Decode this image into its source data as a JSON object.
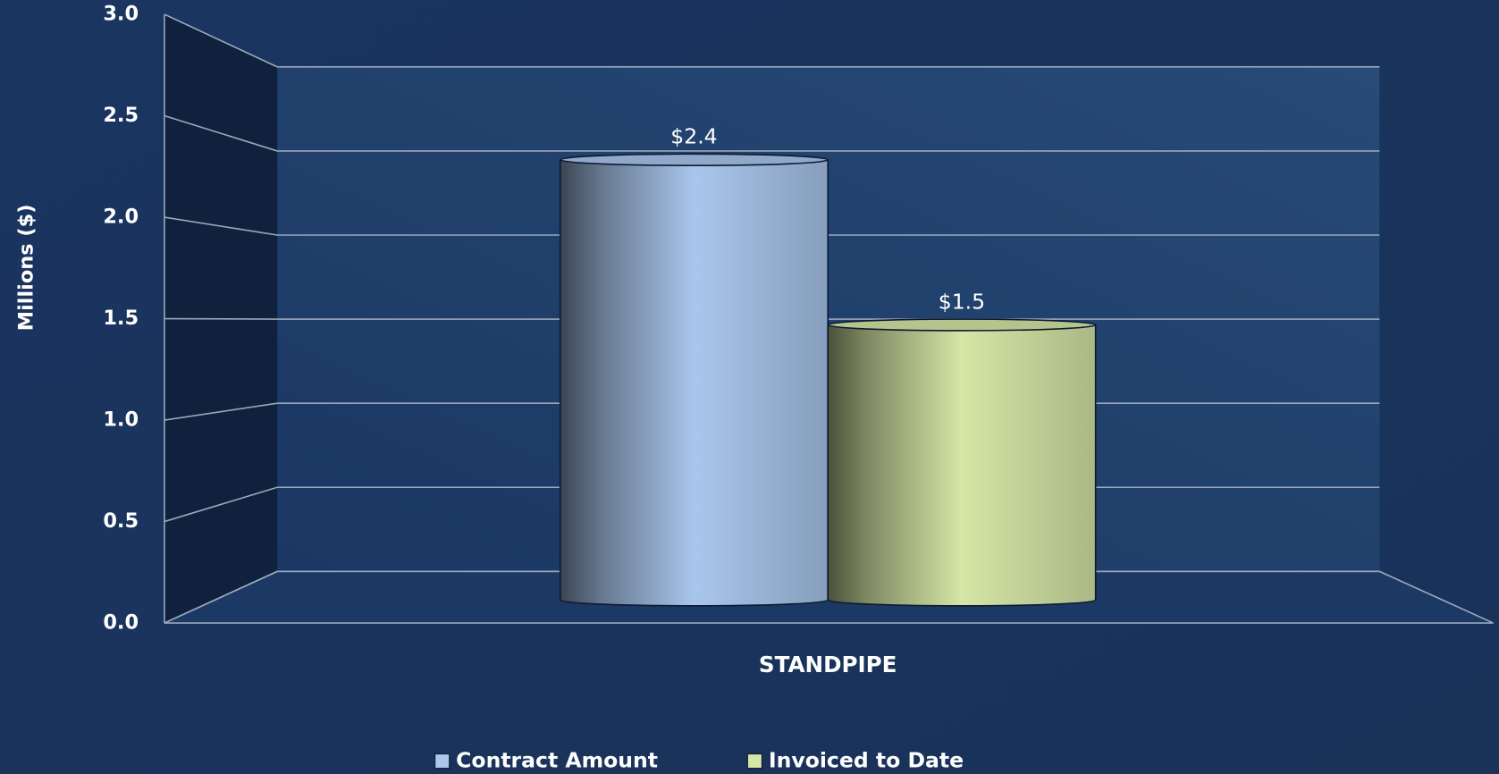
{
  "chart_data": {
    "type": "bar",
    "y_label": "Millions ($)",
    "categories": [
      "STANDPIPE"
    ],
    "series": [
      {
        "name": "Contract Amount",
        "color": "#a9c6ec",
        "values": [
          2.4
        ],
        "value_labels": [
          "$2.4"
        ]
      },
      {
        "name": "Invoiced to Date",
        "color": "#d5e6a6",
        "values": [
          1.5
        ],
        "value_labels": [
          "$1.5"
        ]
      }
    ],
    "ylim": [
      0,
      3
    ],
    "yticks": [
      {
        "value": 0,
        "label": "0.0"
      },
      0.5,
      {
        "value": 1,
        "label": "1.0"
      },
      1.5,
      {
        "value": 2,
        "label": "2.0"
      },
      2.5,
      {
        "value": 3,
        "label": "3.0"
      }
    ],
    "grid": true
  }
}
